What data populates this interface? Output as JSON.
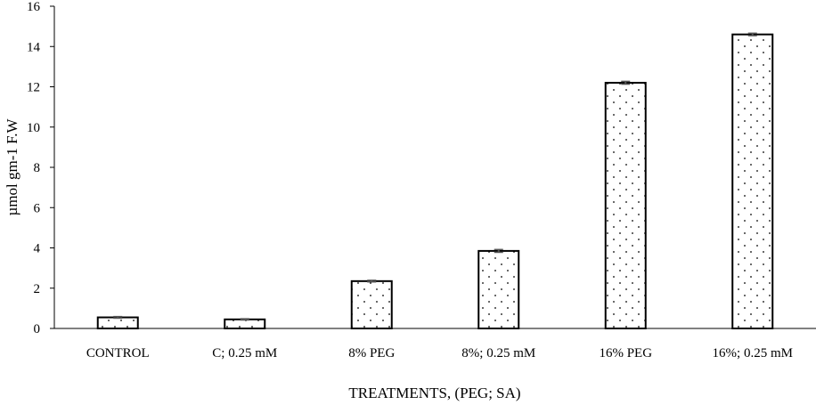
{
  "chart_data": {
    "type": "bar",
    "title": "",
    "xlabel": "TREATMENTS,  (PEG; SA)",
    "ylabel": "µmol gm-1 F.W",
    "categories": [
      "CONTROL",
      "C; 0.25 mM",
      "8% PEG",
      "8%; 0.25 mM",
      "16% PEG",
      "16%; 0.25 mM"
    ],
    "values": [
      0.55,
      0.45,
      2.35,
      3.85,
      12.2,
      14.6
    ],
    "errors": [
      0.04,
      0.03,
      0.04,
      0.07,
      0.07,
      0.06
    ],
    "ylim": [
      0,
      16
    ],
    "yticks": [
      0,
      2,
      4,
      6,
      8,
      10,
      12,
      14,
      16
    ],
    "grid": false,
    "legend": "none",
    "bar_fill": "dotted",
    "colors": {
      "bar_stroke": "#000000",
      "bar_fill": "#ffffff",
      "dots": "#000000",
      "error_bar": "#555555"
    }
  }
}
